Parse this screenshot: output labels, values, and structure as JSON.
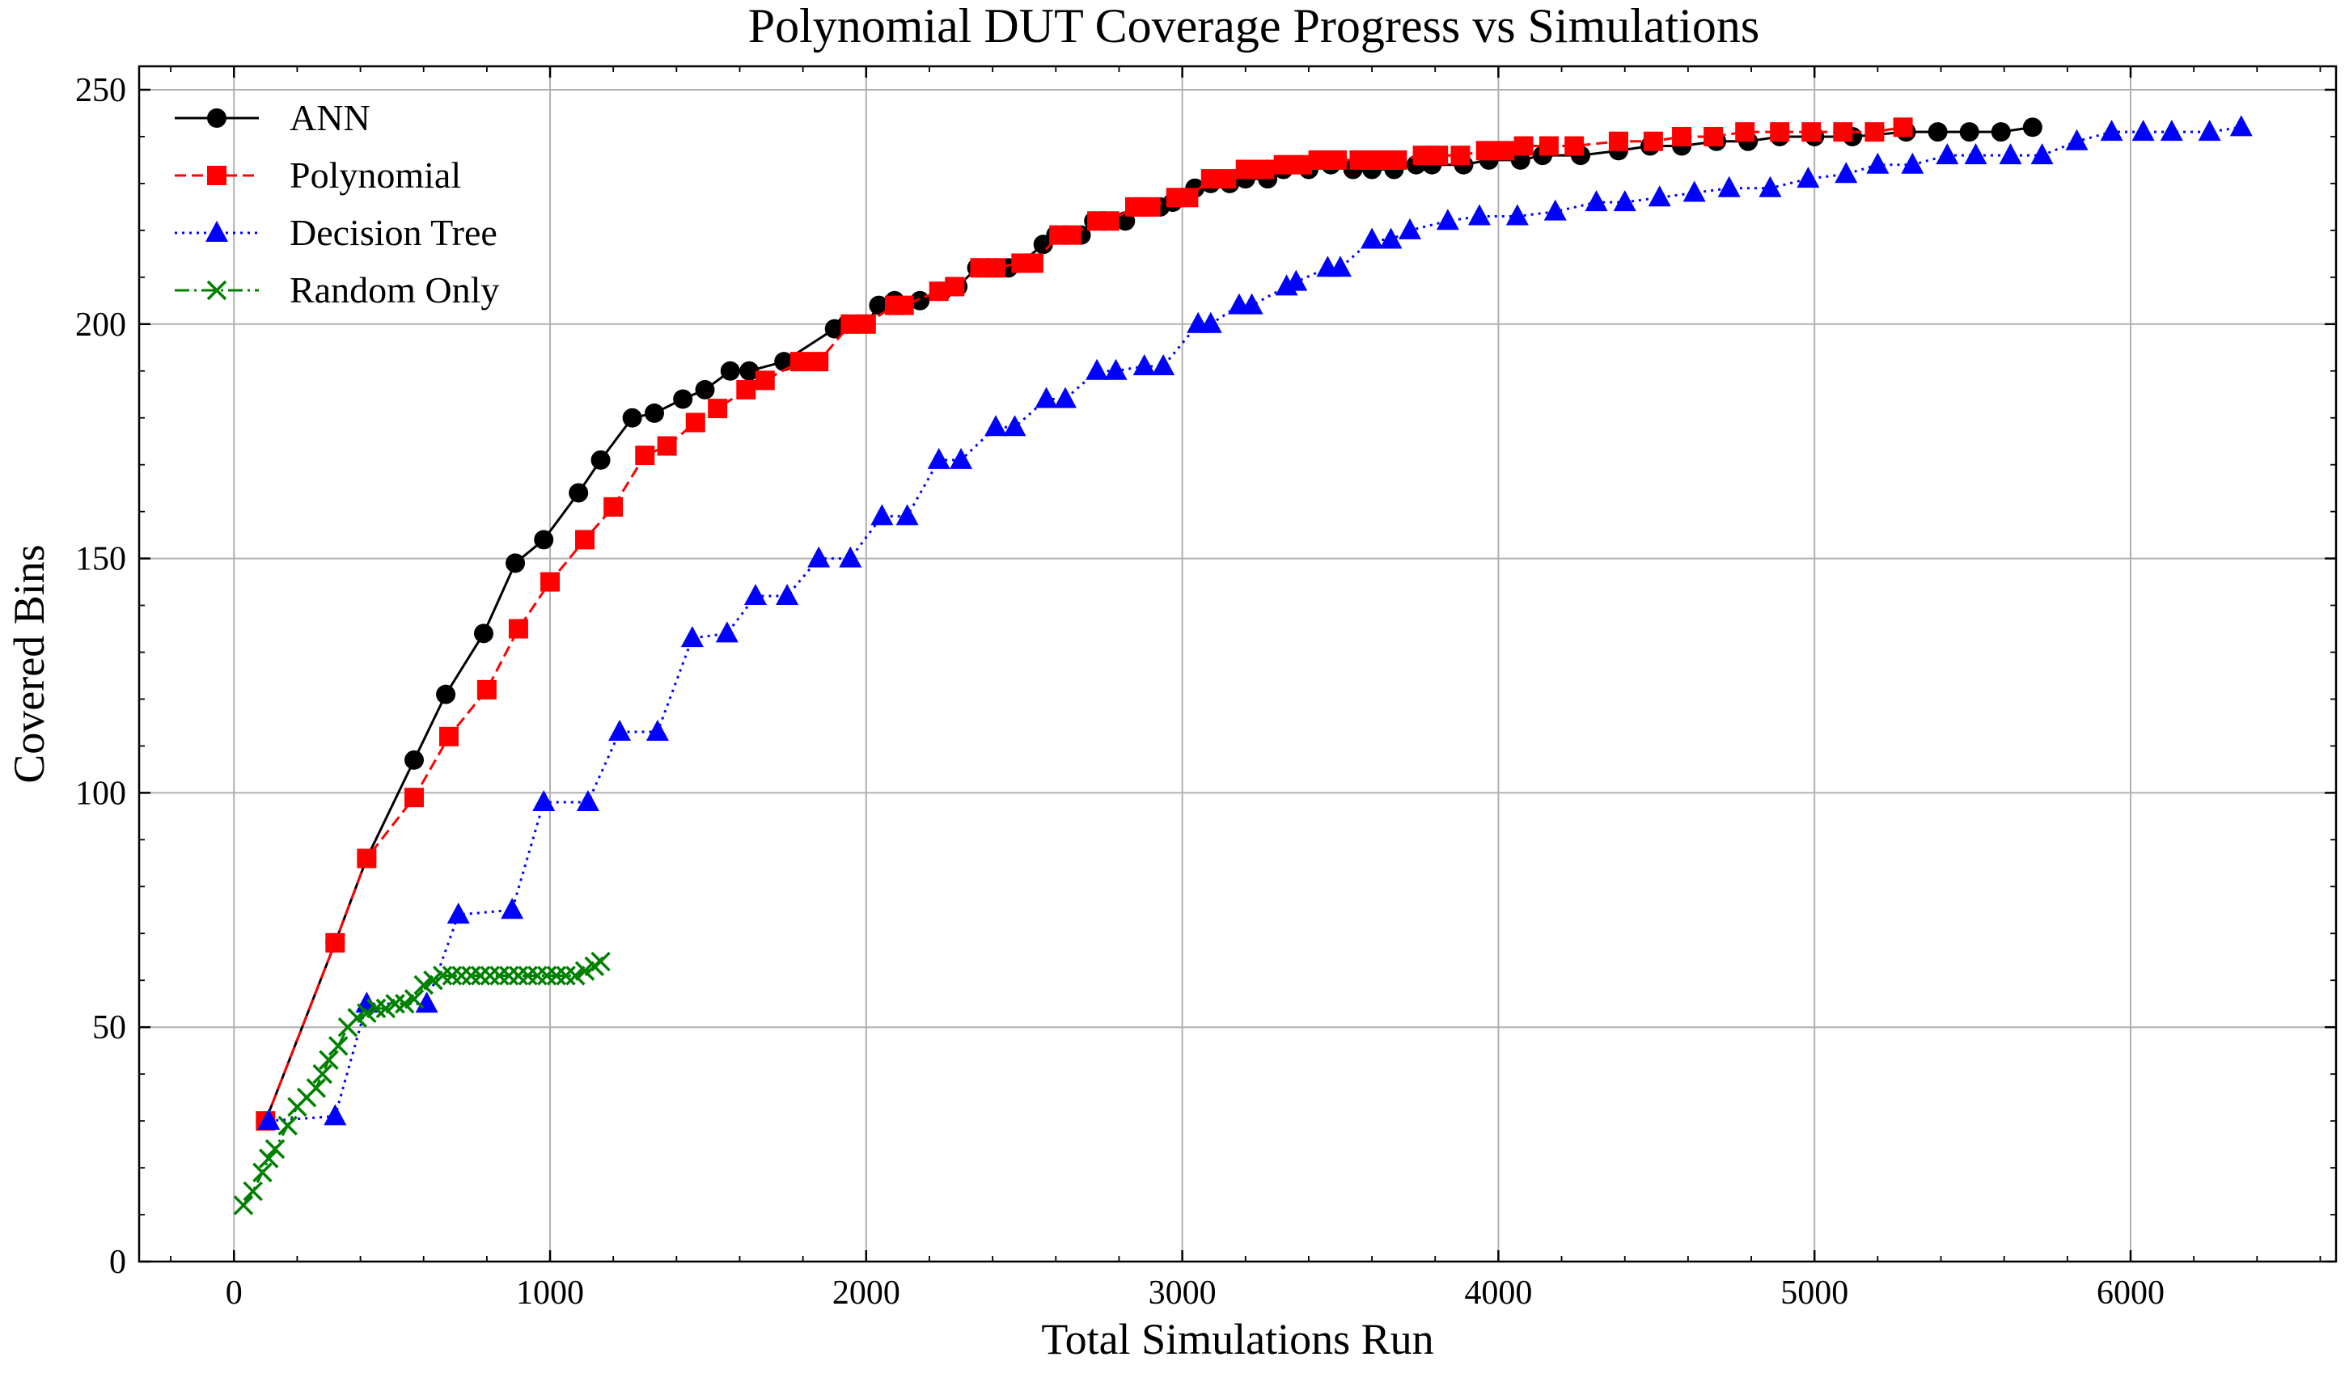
{
  "chart_data": {
    "type": "line",
    "title": "Polynomial DUT Coverage Progress vs Simulations",
    "xlabel": "Total Simulations Run",
    "ylabel": "Covered Bins",
    "xlim": [
      -300,
      6650
    ],
    "ylim": [
      0,
      255
    ],
    "xticks": [
      0,
      1000,
      2000,
      3000,
      4000,
      5000,
      6000
    ],
    "yticks": [
      0,
      50,
      100,
      150,
      200,
      250
    ],
    "grid": true,
    "legend_position": "top-left",
    "series": [
      {
        "name": "ANN",
        "color": "#000000",
        "marker": "circle",
        "dash": "solid",
        "x": [
          100,
          320,
          420,
          570,
          670,
          790,
          890,
          980,
          1090,
          1160,
          1260,
          1330,
          1420,
          1490,
          1570,
          1630,
          1740,
          1900,
          1940,
          2000,
          2040,
          2090,
          2170,
          2240,
          2290,
          2350,
          2410,
          2450,
          2490,
          2560,
          2600,
          2680,
          2720,
          2780,
          2820,
          2880,
          2930,
          2970,
          3040,
          3090,
          3150,
          3200,
          3270,
          3320,
          3400,
          3470,
          3540,
          3600,
          3670,
          3740,
          3790,
          3890,
          3970,
          4070,
          4140,
          4260,
          4380,
          4480,
          4580,
          4690,
          4790,
          4890,
          5000,
          5120,
          5290,
          5390,
          5490,
          5590,
          5690
        ],
        "y": [
          30,
          68,
          86,
          107,
          121,
          134,
          149,
          154,
          164,
          171,
          180,
          181,
          184,
          186,
          190,
          190,
          192,
          199,
          200,
          200,
          204,
          205,
          205,
          207,
          208,
          212,
          212,
          212,
          213,
          217,
          219,
          219,
          222,
          222,
          222,
          225,
          225,
          226,
          229,
          230,
          230,
          231,
          231,
          233,
          233,
          234,
          233,
          233,
          233,
          234,
          234,
          234,
          235,
          235,
          236,
          236,
          237,
          238,
          238,
          239,
          239,
          240,
          240,
          240,
          241,
          241,
          241,
          241,
          242
        ]
      },
      {
        "name": "Polynomial",
        "color": "#ff0000",
        "marker": "square",
        "dash": "dashed",
        "x": [
          100,
          320,
          420,
          570,
          680,
          800,
          900,
          1000,
          1110,
          1200,
          1300,
          1370,
          1460,
          1530,
          1620,
          1680,
          1790,
          1850,
          1950,
          2000,
          2090,
          2120,
          2230,
          2280,
          2360,
          2410,
          2490,
          2530,
          2610,
          2650,
          2730,
          2770,
          2850,
          2900,
          2980,
          3020,
          3090,
          3140,
          3200,
          3260,
          3320,
          3380,
          3430,
          3490,
          3560,
          3620,
          3680,
          3760,
          3810,
          3880,
          3960,
          4020,
          4080,
          4160,
          4240,
          4380,
          4490,
          4580,
          4680,
          4780,
          4890,
          4990,
          5090,
          5190,
          5280
        ],
        "y": [
          30,
          68,
          86,
          99,
          112,
          122,
          135,
          145,
          154,
          161,
          172,
          174,
          179,
          182,
          186,
          188,
          192,
          192,
          200,
          200,
          204,
          204,
          207,
          208,
          212,
          212,
          213,
          213,
          219,
          219,
          222,
          222,
          225,
          225,
          227,
          227,
          231,
          231,
          233,
          233,
          234,
          234,
          235,
          235,
          235,
          235,
          235,
          236,
          236,
          236,
          237,
          237,
          238,
          238,
          238,
          239,
          239,
          240,
          240,
          241,
          241,
          241,
          241,
          241,
          242
        ]
      },
      {
        "name": "Decision Tree",
        "color": "#0000ff",
        "marker": "triangle",
        "dash": "dotted",
        "x": [
          110,
          320,
          420,
          610,
          710,
          880,
          980,
          1120,
          1220,
          1340,
          1450,
          1560,
          1650,
          1750,
          1850,
          1950,
          2050,
          2130,
          2230,
          2300,
          2410,
          2470,
          2570,
          2630,
          2730,
          2790,
          2880,
          2940,
          3050,
          3090,
          3180,
          3220,
          3330,
          3360,
          3460,
          3500,
          3600,
          3660,
          3720,
          3840,
          3940,
          4060,
          4180,
          4310,
          4400,
          4510,
          4620,
          4730,
          4860,
          4980,
          5100,
          5200,
          5310,
          5420,
          5510,
          5620,
          5720,
          5830,
          5940,
          6040,
          6130,
          6250,
          6350
        ],
        "y": [
          30,
          31,
          55,
          55,
          74,
          75,
          98,
          98,
          113,
          113,
          133,
          134,
          142,
          142,
          150,
          150,
          159,
          159,
          171,
          171,
          178,
          178,
          184,
          184,
          190,
          190,
          191,
          191,
          200,
          200,
          204,
          204,
          208,
          209,
          212,
          212,
          218,
          218,
          220,
          222,
          223,
          223,
          224,
          226,
          226,
          227,
          228,
          229,
          229,
          231,
          232,
          234,
          234,
          236,
          236,
          236,
          236,
          239,
          241,
          241,
          241,
          241,
          242
        ]
      },
      {
        "name": "Random Only",
        "color": "#008000",
        "marker": "x",
        "dash": "dashdot",
        "x": [
          30,
          60,
          90,
          110,
          130,
          170,
          200,
          230,
          260,
          280,
          300,
          330,
          360,
          390,
          420,
          450,
          480,
          510,
          540,
          570,
          600,
          630,
          660,
          690,
          720,
          750,
          780,
          810,
          840,
          870,
          900,
          930,
          960,
          990,
          1020,
          1050,
          1080,
          1110,
          1140,
          1160
        ],
        "y": [
          12,
          15,
          19,
          22,
          24,
          29,
          33,
          35,
          37,
          40,
          43,
          46,
          50,
          52,
          53,
          54,
          54,
          55,
          55,
          56,
          59,
          60,
          61,
          61,
          61,
          61,
          61,
          61,
          61,
          61,
          61,
          61,
          61,
          61,
          61,
          61,
          61,
          62,
          63,
          64
        ]
      }
    ]
  }
}
